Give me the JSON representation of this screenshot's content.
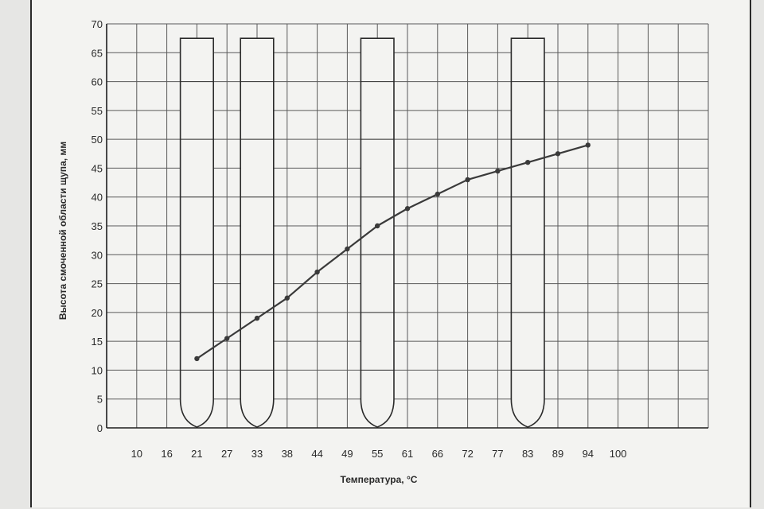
{
  "chart_data": {
    "type": "line",
    "title": "",
    "xlabel": "Температура, °С",
    "ylabel": "Высота смоченной области щупа, мм",
    "categories": [
      "10",
      "16",
      "21",
      "27",
      "33",
      "38",
      "44",
      "49",
      "55",
      "61",
      "66",
      "72",
      "77",
      "83",
      "89",
      "94",
      "100"
    ],
    "ylim": [
      0,
      70
    ],
    "yticks": [
      0,
      5,
      10,
      15,
      20,
      25,
      30,
      35,
      40,
      45,
      50,
      55,
      60,
      65,
      70
    ],
    "grid": true,
    "legend": "none",
    "series": [
      {
        "x": [
          "21",
          "27",
          "33",
          "38",
          "44",
          "49",
          "55",
          "61",
          "66",
          "72",
          "77",
          "83",
          "89",
          "94"
        ],
        "values": [
          12,
          15.5,
          19,
          22.5,
          27,
          31,
          35,
          38,
          40.5,
          43,
          44.5,
          46,
          47.5,
          49
        ]
      }
    ],
    "tubes": [
      {
        "center_x": "21",
        "top_value": 67.5
      },
      {
        "center_x": "33",
        "top_value": 67.5
      },
      {
        "center_x": "55",
        "top_value": 67.5
      },
      {
        "center_x": "83",
        "top_value": 67.5
      }
    ],
    "colors": {
      "line": "#3a3a3a",
      "grid": "#5a5a5a",
      "background": "#f3f3f1"
    }
  }
}
